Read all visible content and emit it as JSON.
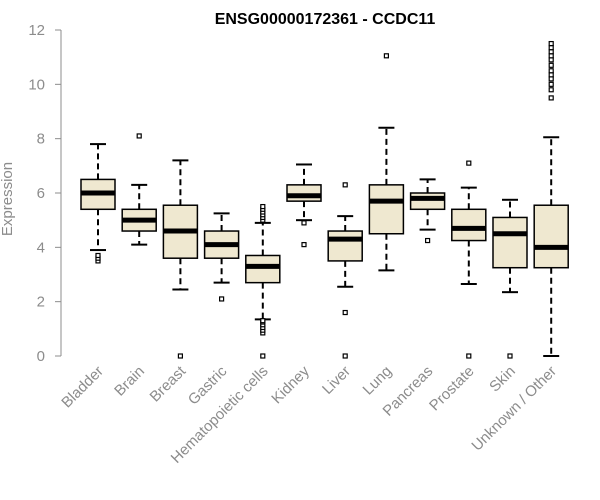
{
  "chart_data": {
    "type": "boxplot",
    "title": "ENSG00000172361 - CCDC11",
    "xlabel": "",
    "ylabel": "Expression",
    "ylim": [
      0,
      12
    ],
    "yticks": [
      0,
      2,
      4,
      6,
      8,
      10,
      12
    ],
    "box_fill": "#efe8d0",
    "stroke": "#000000",
    "axis_color": "#8c8c8c",
    "categories": [
      "Bladder",
      "Brain",
      "Breast",
      "Gastric",
      "Hematopoietic cells",
      "Kidney",
      "Liver",
      "Lung",
      "Pancreas",
      "Prostate",
      "Skin",
      "Unknown / Other"
    ],
    "boxes": [
      {
        "category": "Bladder",
        "q1": 5.4,
        "median": 6.0,
        "q3": 6.5,
        "whisker_low": 3.9,
        "whisker_high": 7.8,
        "outliers": [
          3.5,
          3.6,
          3.7
        ]
      },
      {
        "category": "Brain",
        "q1": 4.6,
        "median": 5.0,
        "q3": 5.4,
        "whisker_low": 4.1,
        "whisker_high": 6.3,
        "outliers": [
          8.1
        ]
      },
      {
        "category": "Breast",
        "q1": 3.6,
        "median": 4.6,
        "q3": 5.55,
        "whisker_low": 2.45,
        "whisker_high": 7.2,
        "outliers": [
          0.0
        ]
      },
      {
        "category": "Gastric",
        "q1": 3.6,
        "median": 4.1,
        "q3": 4.6,
        "whisker_low": 2.7,
        "whisker_high": 5.25,
        "outliers": [
          2.1
        ]
      },
      {
        "category": "Hematopoietic cells",
        "q1": 2.7,
        "median": 3.3,
        "q3": 3.7,
        "whisker_low": 1.35,
        "whisker_high": 4.9,
        "outliers": [
          0.0,
          0.85,
          0.95,
          1.05,
          1.15,
          1.25,
          1.3,
          5.0,
          5.1,
          5.2,
          5.3,
          5.4,
          5.5
        ]
      },
      {
        "category": "Kidney",
        "q1": 5.7,
        "median": 5.9,
        "q3": 6.3,
        "whisker_low": 5.0,
        "whisker_high": 7.05,
        "outliers": [
          4.1,
          4.9
        ]
      },
      {
        "category": "Liver",
        "q1": 3.5,
        "median": 4.3,
        "q3": 4.6,
        "whisker_low": 2.55,
        "whisker_high": 5.15,
        "outliers": [
          0.0,
          1.6,
          6.3
        ]
      },
      {
        "category": "Lung",
        "q1": 4.5,
        "median": 5.7,
        "q3": 6.3,
        "whisker_low": 3.15,
        "whisker_high": 8.4,
        "outliers": [
          11.05
        ]
      },
      {
        "category": "Pancreas",
        "q1": 5.4,
        "median": 5.8,
        "q3": 6.0,
        "whisker_low": 4.65,
        "whisker_high": 6.5,
        "outliers": [
          4.25
        ]
      },
      {
        "category": "Prostate",
        "q1": 4.25,
        "median": 4.7,
        "q3": 5.4,
        "whisker_low": 2.65,
        "whisker_high": 6.2,
        "outliers": [
          0.0,
          7.1
        ]
      },
      {
        "category": "Skin",
        "q1": 3.25,
        "median": 4.5,
        "q3": 5.1,
        "whisker_low": 2.35,
        "whisker_high": 5.75,
        "outliers": [
          0.0
        ]
      },
      {
        "category": "Unknown / Other",
        "q1": 3.25,
        "median": 4.0,
        "q3": 5.55,
        "whisker_low": 0.0,
        "whisker_high": 8.05,
        "outliers": [
          9.5,
          9.8,
          10.0,
          10.2,
          10.35,
          10.5,
          10.7,
          10.9,
          11.05,
          11.2,
          11.35,
          11.5
        ]
      }
    ]
  }
}
